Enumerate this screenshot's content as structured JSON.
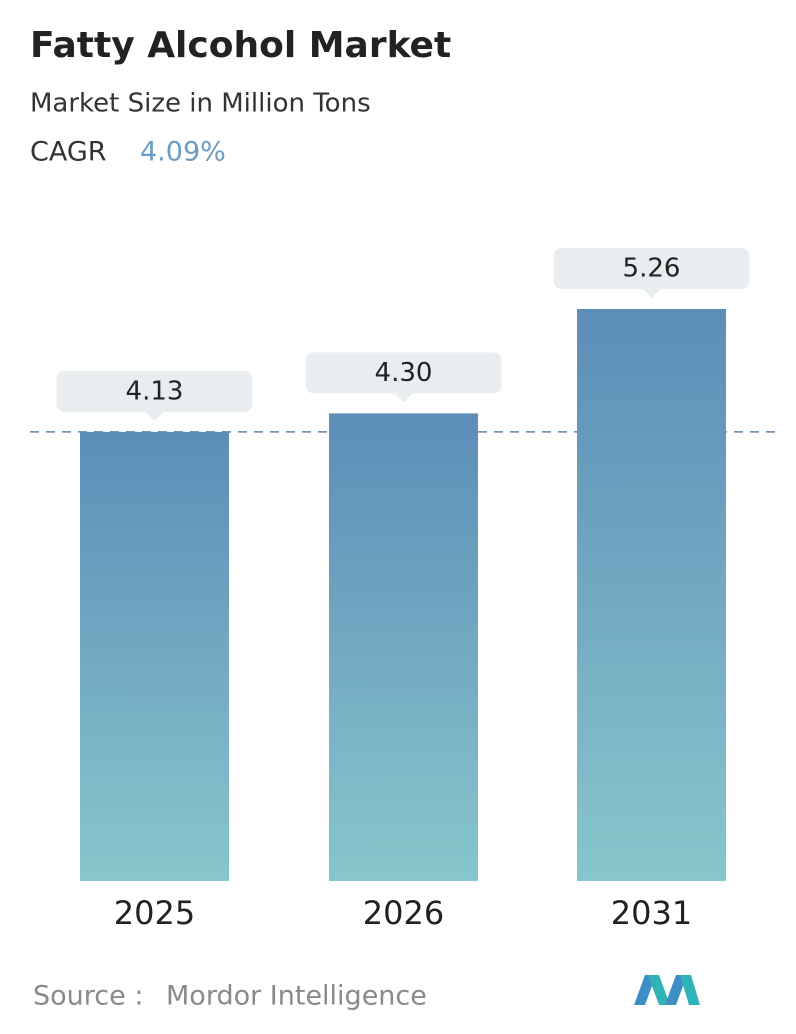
{
  "chart_data": {
    "type": "bar",
    "title": "Fatty Alcohol Market",
    "subtitle": "Market Size in Million Tons",
    "cagr_label": "CAGR",
    "cagr": "4.09%",
    "categories": [
      "2025",
      "2026",
      "2031"
    ],
    "values": [
      4.13,
      4.3,
      5.26
    ],
    "value_labels": [
      "4.13",
      "4.30",
      "5.26"
    ],
    "source_label": "Source :",
    "source": "Mordor Intelligence"
  }
}
